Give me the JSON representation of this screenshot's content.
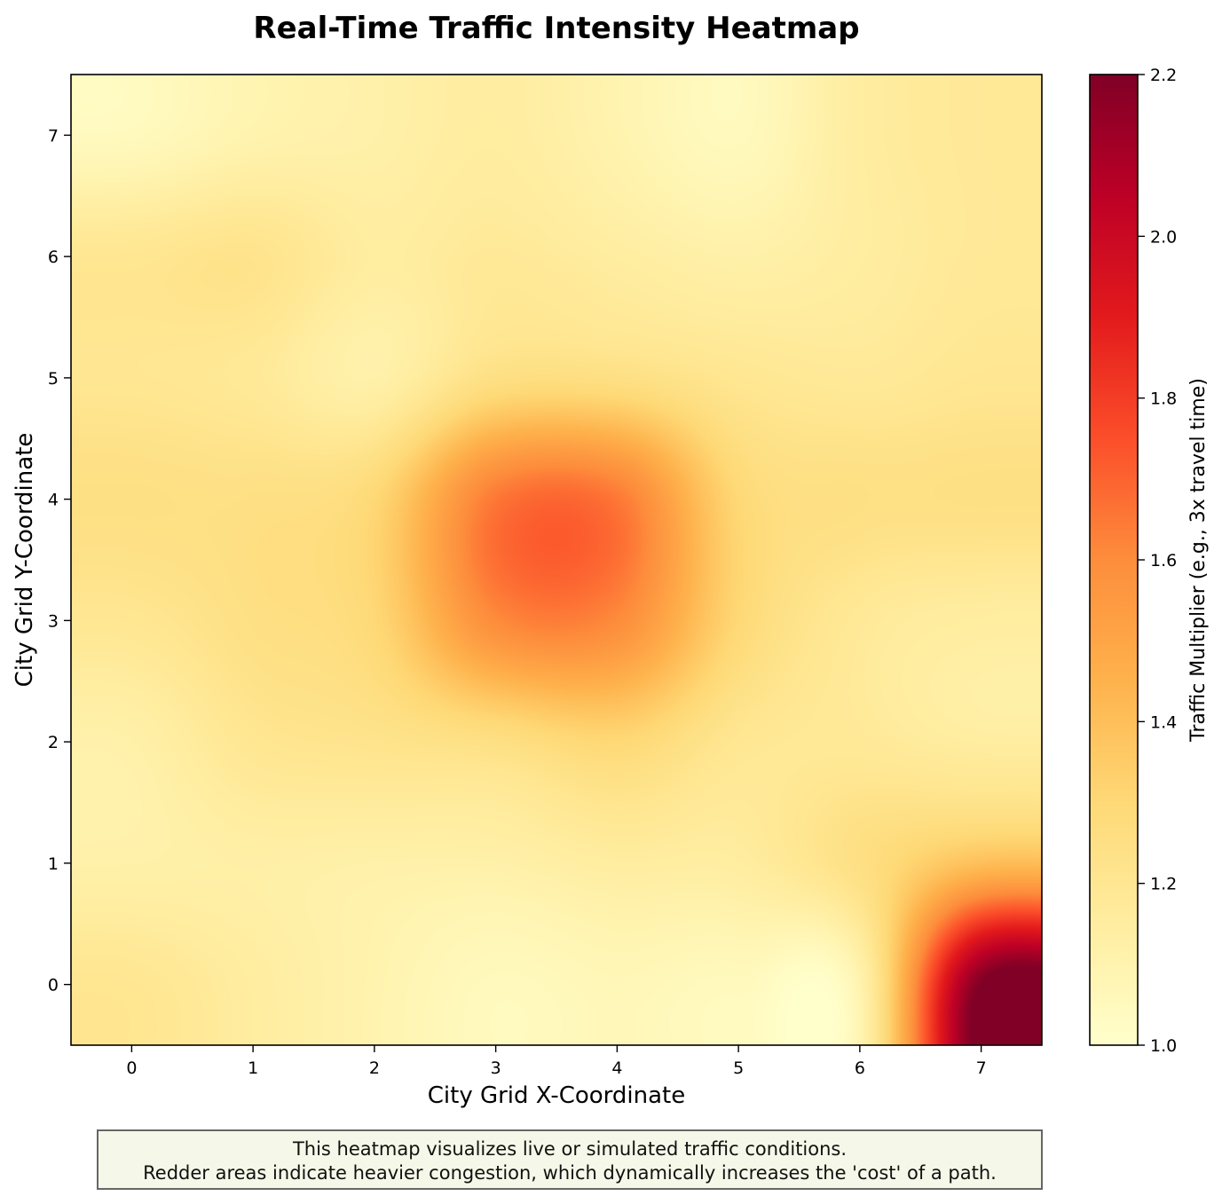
{
  "chart_data": {
    "type": "heatmap",
    "title": "Real-Time Traffic Intensity Heatmap",
    "xlabel": "City Grid X-Coordinate",
    "ylabel": "City Grid Y-Coordinate",
    "x": [
      0,
      1,
      2,
      3,
      4,
      5,
      6,
      7
    ],
    "y": [
      0,
      1,
      2,
      3,
      4,
      5,
      6,
      7
    ],
    "x_ticks": [
      "0",
      "1",
      "2",
      "3",
      "4",
      "5",
      "6",
      "7"
    ],
    "y_ticks": [
      "0",
      "1",
      "2",
      "3",
      "4",
      "5",
      "6",
      "7"
    ],
    "xlim": [
      -0.5,
      7.5
    ],
    "ylim": [
      -0.5,
      7.5
    ],
    "values": [
      [
        1.2,
        1.15,
        1.1,
        1.05,
        1.07,
        1.05,
        1.1,
        2.2
      ],
      [
        1.12,
        1.13,
        1.12,
        1.12,
        1.15,
        1.15,
        1.25,
        1.4
      ],
      [
        1.12,
        1.2,
        1.22,
        1.25,
        1.3,
        1.2,
        1.18,
        1.15
      ],
      [
        1.2,
        1.25,
        1.3,
        1.6,
        1.6,
        1.3,
        1.18,
        1.15
      ],
      [
        1.25,
        1.25,
        1.3,
        1.65,
        1.65,
        1.3,
        1.25,
        1.25
      ],
      [
        1.2,
        1.18,
        1.12,
        1.25,
        1.25,
        1.2,
        1.18,
        1.2
      ],
      [
        1.2,
        1.22,
        1.15,
        1.18,
        1.15,
        1.12,
        1.15,
        1.18
      ],
      [
        1.05,
        1.1,
        1.12,
        1.15,
        1.1,
        1.05,
        1.15,
        1.18
      ]
    ],
    "colormap": "YlOrRd",
    "colorbar": {
      "label": "Traffic Multiplier (e.g., 3x travel time)",
      "range": [
        1.0,
        2.2
      ],
      "ticks": [
        "1.0",
        "1.2",
        "1.4",
        "1.6",
        "1.8",
        "2.0",
        "2.2"
      ]
    },
    "grid": false
  },
  "caption": {
    "line1": "This heatmap visualizes live or simulated traffic conditions.",
    "line2": "Redder areas indicate heavier congestion, which dynamically increases the 'cost' of a path."
  }
}
